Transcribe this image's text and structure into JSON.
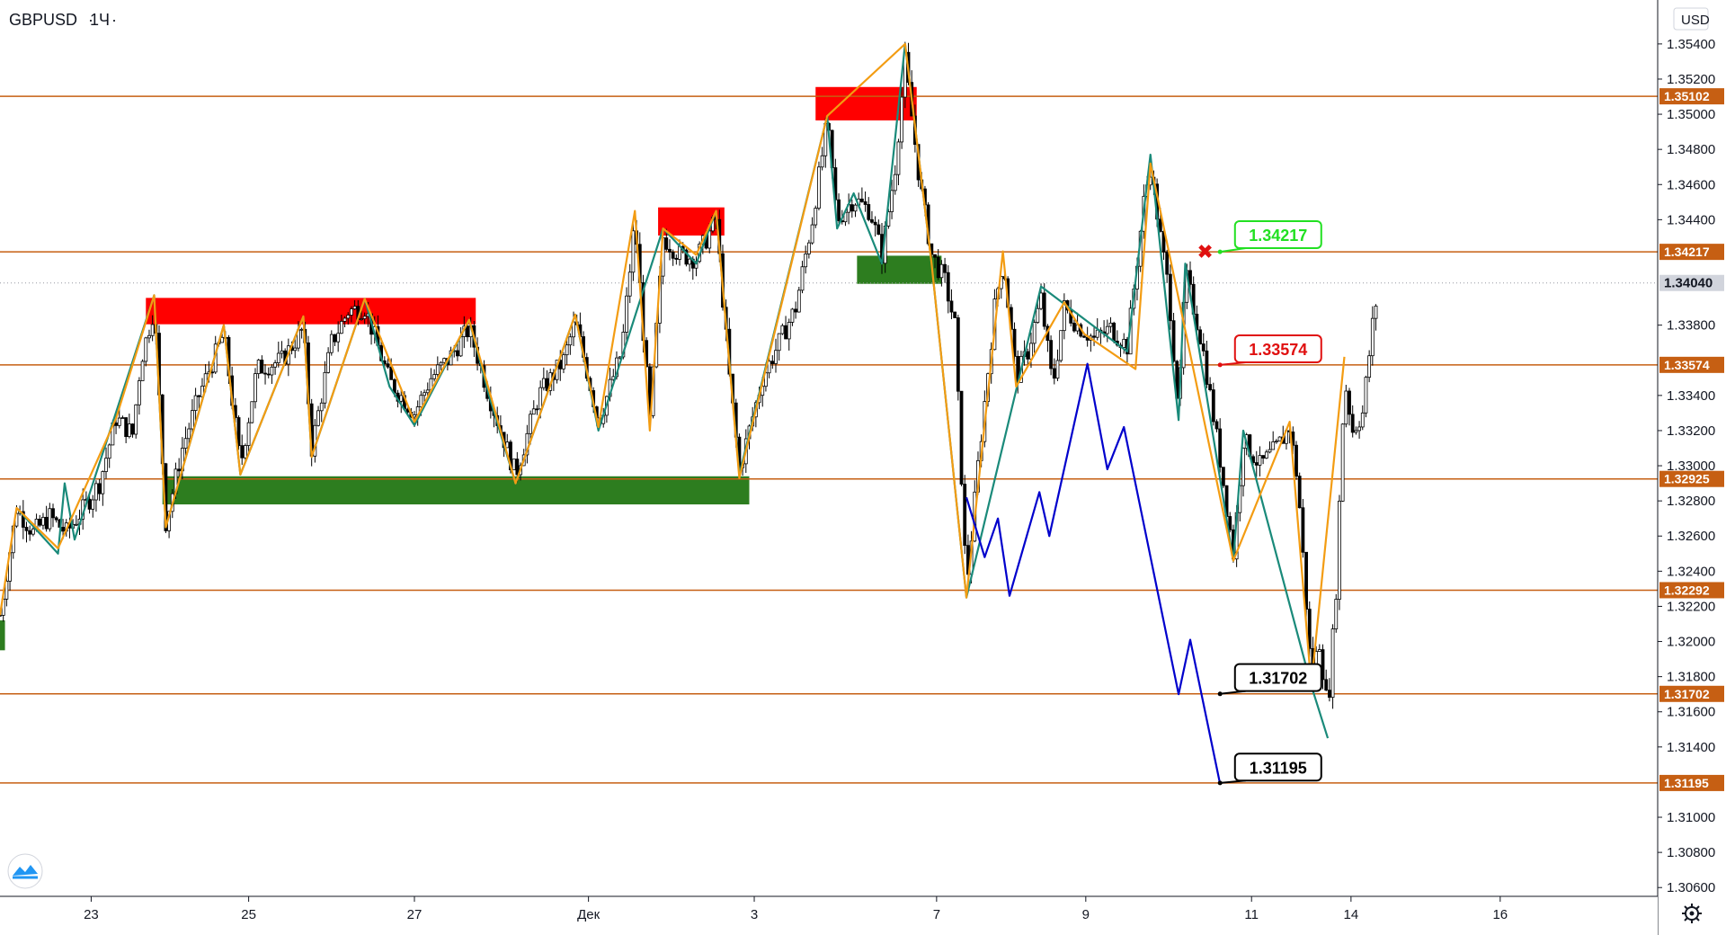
{
  "header": {
    "symbol": "GBPUSD",
    "interval": "1Ч",
    "currency": "USD"
  },
  "colors": {
    "level": "#c65f13",
    "up_wave": "#f39c12",
    "down_wave": "#1a8a7a",
    "projection": "#0000cc",
    "supply": "#ff0000",
    "demand": "#2d7d1f",
    "candle": "#000000",
    "callout_green": "#22e022",
    "callout_red": "#e01010",
    "callout_black": "#000000"
  },
  "chart_data": {
    "type": "candlestick",
    "symbol": "GBPUSD",
    "interval": "1Ч",
    "ylim": [
      1.3055,
      1.3565
    ],
    "xlim": [
      0,
      100
    ],
    "x_tick_labels": [
      {
        "label": "23",
        "x": 5.5
      },
      {
        "label": "25",
        "x": 15
      },
      {
        "label": "27",
        "x": 25
      },
      {
        "label": "Дек",
        "x": 35.5
      },
      {
        "label": "3",
        "x": 45.5
      },
      {
        "label": "7",
        "x": 56.5
      },
      {
        "label": "9",
        "x": 65.5
      },
      {
        "label": "11",
        "x": 75.5
      },
      {
        "label": "14",
        "x": 81.5
      },
      {
        "label": "16",
        "x": 90.5
      }
    ],
    "y_tick_labels": [
      "1.35400",
      "1.35200",
      "1.35000",
      "1.34800",
      "1.34600",
      "1.34400",
      "1.33800",
      "1.33400",
      "1.33200",
      "1.33000",
      "1.32800",
      "1.32600",
      "1.32400",
      "1.32200",
      "1.32000",
      "1.31800",
      "1.31600",
      "1.31400",
      "1.31000",
      "1.30800",
      "1.30600"
    ],
    "last_price": {
      "value": 1.3404,
      "label": "1.34040"
    },
    "levels": [
      {
        "value": 1.35102,
        "label": "1.35102"
      },
      {
        "value": 1.34217,
        "label": "1.34217"
      },
      {
        "value": 1.33574,
        "label": "1.33574"
      },
      {
        "value": 1.32925,
        "label": "1.32925"
      },
      {
        "value": 1.32292,
        "label": "1.32292"
      },
      {
        "value": 1.31702,
        "label": "1.31702"
      },
      {
        "value": 1.31195,
        "label": "1.31195"
      }
    ],
    "zones": [
      {
        "kind": "supply",
        "x0": 8.8,
        "x1": 28.7,
        "y0": 1.33805,
        "y1": 1.33955
      },
      {
        "kind": "supply",
        "x0": 39.7,
        "x1": 43.7,
        "y0": 1.3431,
        "y1": 1.3447
      },
      {
        "kind": "supply",
        "x0": 49.2,
        "x1": 55.3,
        "y0": 1.34965,
        "y1": 1.35155
      },
      {
        "kind": "demand",
        "x0": 9.8,
        "x1": 45.2,
        "y0": 1.3278,
        "y1": 1.3294
      },
      {
        "kind": "demand",
        "x0": 51.7,
        "x1": 56.8,
        "y0": 1.34035,
        "y1": 1.34195
      },
      {
        "kind": "demand",
        "x0": 0,
        "x1": 0.3,
        "y0": 1.3195,
        "y1": 1.3212
      }
    ],
    "up_wave": [
      [
        0,
        1.3215
      ],
      [
        1,
        1.3276
      ],
      [
        3.5,
        1.3253
      ],
      [
        7,
        1.3327
      ],
      [
        9.3,
        1.3397
      ],
      [
        10,
        1.3265
      ],
      [
        13.5,
        1.338
      ],
      [
        14.5,
        1.3295
      ],
      [
        18.3,
        1.3385
      ],
      [
        18.8,
        1.3305
      ],
      [
        22,
        1.3395
      ],
      [
        25,
        1.3325
      ],
      [
        28.3,
        1.3383
      ],
      [
        31.1,
        1.329
      ],
      [
        34.7,
        1.3386
      ],
      [
        36.1,
        1.3322
      ],
      [
        38.3,
        1.3445
      ],
      [
        39.2,
        1.332
      ],
      [
        40,
        1.3435
      ],
      [
        42,
        1.342
      ],
      [
        43.2,
        1.3445
      ],
      [
        44.6,
        1.3293
      ],
      [
        49.9,
        1.3499
      ],
      [
        54.6,
        1.354
      ],
      [
        56.2,
        1.3415
      ],
      [
        58.3,
        1.3225
      ],
      [
        60.5,
        1.3422
      ],
      [
        61.3,
        1.3345
      ],
      [
        64.2,
        1.3393
      ],
      [
        65.4,
        1.3375
      ],
      [
        68.5,
        1.3355
      ],
      [
        69.4,
        1.3472
      ],
      [
        74.4,
        1.3246
      ],
      [
        77.8,
        1.3325
      ],
      [
        79.1,
        1.3175
      ],
      [
        81.1,
        1.3362
      ]
    ],
    "down_wave": [
      [
        1,
        1.3276
      ],
      [
        3.5,
        1.325
      ],
      [
        3.9,
        1.329
      ],
      [
        4.5,
        1.3258
      ],
      [
        9.3,
        1.3397
      ],
      [
        10,
        1.3265
      ],
      [
        13.5,
        1.338
      ],
      [
        14.5,
        1.3295
      ],
      [
        18.3,
        1.3385
      ],
      [
        18.8,
        1.3305
      ],
      [
        22,
        1.3395
      ],
      [
        23.5,
        1.3345
      ],
      [
        25,
        1.3323
      ],
      [
        28.3,
        1.3383
      ],
      [
        29.5,
        1.334
      ],
      [
        31.1,
        1.329
      ],
      [
        34.7,
        1.3386
      ],
      [
        36.1,
        1.332
      ],
      [
        40,
        1.3435
      ],
      [
        42,
        1.3415
      ],
      [
        43.2,
        1.3445
      ],
      [
        44.6,
        1.3295
      ],
      [
        49.9,
        1.3499
      ],
      [
        50.5,
        1.3435
      ],
      [
        51.5,
        1.3455
      ],
      [
        53.2,
        1.3415
      ],
      [
        54.6,
        1.354
      ],
      [
        56.2,
        1.3415
      ],
      [
        58.3,
        1.3225
      ],
      [
        62.8,
        1.3402
      ],
      [
        68,
        1.3365
      ],
      [
        69.4,
        1.3477
      ],
      [
        71.1,
        1.3326
      ],
      [
        71.5,
        1.3415
      ],
      [
        74.4,
        1.3246
      ],
      [
        75,
        1.332
      ],
      [
        79.1,
        1.3175
      ],
      [
        80.1,
        1.3145
      ]
    ],
    "projection": [
      [
        58.3,
        1.3282
      ],
      [
        59.4,
        1.3248
      ],
      [
        60.2,
        1.327
      ],
      [
        60.9,
        1.3226
      ],
      [
        62.7,
        1.3285
      ],
      [
        63.3,
        1.326
      ],
      [
        65.6,
        1.3358
      ],
      [
        66.8,
        1.3298
      ],
      [
        67.8,
        1.3322
      ],
      [
        71.1,
        1.317
      ],
      [
        71.8,
        1.3201
      ],
      [
        73.6,
        1.3119
      ]
    ],
    "callouts": [
      {
        "label": "1.34217",
        "color": "green",
        "value": 1.34217,
        "anchor_x": 73.6,
        "box_x": 74.5,
        "box_value": 1.3431
      },
      {
        "label": "1.33574",
        "color": "red",
        "value": 1.33574,
        "anchor_x": 73.6,
        "box_x": 74.5,
        "box_value": 1.3366
      },
      {
        "label": "1.31702",
        "color": "black",
        "value": 1.31702,
        "anchor_x": 73.6,
        "box_x": 74.5,
        "box_value": 1.3179
      },
      {
        "label": "1.31195",
        "color": "black",
        "value": 1.31195,
        "anchor_x": 73.6,
        "box_x": 74.5,
        "box_value": 1.3128
      }
    ],
    "cancel_mark": {
      "x": 72.7,
      "value": 1.3422,
      "glyph": "✖"
    },
    "candle_anchors": [
      [
        0,
        1.3215
      ],
      [
        1,
        1.3276
      ],
      [
        2,
        1.3262
      ],
      [
        3,
        1.3271
      ],
      [
        4,
        1.3262
      ],
      [
        5,
        1.3275
      ],
      [
        6,
        1.329
      ],
      [
        7,
        1.3327
      ],
      [
        8,
        1.3318
      ],
      [
        8.5,
        1.336
      ],
      [
        9.3,
        1.339
      ],
      [
        10,
        1.3268
      ],
      [
        11,
        1.331
      ],
      [
        12,
        1.334
      ],
      [
        13.5,
        1.3375
      ],
      [
        14.5,
        1.33
      ],
      [
        15.5,
        1.3355
      ],
      [
        17,
        1.336
      ],
      [
        18.3,
        1.3378
      ],
      [
        18.8,
        1.331
      ],
      [
        20,
        1.337
      ],
      [
        21,
        1.3388
      ],
      [
        22,
        1.339
      ],
      [
        23.5,
        1.3348
      ],
      [
        25,
        1.333
      ],
      [
        26,
        1.335
      ],
      [
        27,
        1.336
      ],
      [
        28.3,
        1.3378
      ],
      [
        29.5,
        1.334
      ],
      [
        31.1,
        1.3295
      ],
      [
        32.5,
        1.334
      ],
      [
        34,
        1.336
      ],
      [
        34.7,
        1.3382
      ],
      [
        35.5,
        1.335
      ],
      [
        36.1,
        1.3325
      ],
      [
        37.5,
        1.3365
      ],
      [
        38.3,
        1.344
      ],
      [
        39.2,
        1.3325
      ],
      [
        40,
        1.343
      ],
      [
        41,
        1.342
      ],
      [
        42,
        1.3418
      ],
      [
        43.2,
        1.344
      ],
      [
        44,
        1.335
      ],
      [
        44.6,
        1.3298
      ],
      [
        46,
        1.335
      ],
      [
        47,
        1.337
      ],
      [
        48,
        1.339
      ],
      [
        49,
        1.344
      ],
      [
        49.9,
        1.3495
      ],
      [
        50.5,
        1.344
      ],
      [
        51.5,
        1.3452
      ],
      [
        52.5,
        1.3445
      ],
      [
        53.2,
        1.342
      ],
      [
        54,
        1.347
      ],
      [
        54.6,
        1.353
      ],
      [
        55.5,
        1.346
      ],
      [
        56.2,
        1.342
      ],
      [
        57,
        1.3405
      ],
      [
        57.6,
        1.338
      ],
      [
        58.3,
        1.323
      ],
      [
        59,
        1.33
      ],
      [
        60,
        1.339
      ],
      [
        60.5,
        1.3418
      ],
      [
        61.3,
        1.335
      ],
      [
        62,
        1.3365
      ],
      [
        62.8,
        1.3395
      ],
      [
        63.5,
        1.3345
      ],
      [
        64.2,
        1.339
      ],
      [
        65,
        1.338
      ],
      [
        66,
        1.3372
      ],
      [
        67,
        1.3378
      ],
      [
        68,
        1.3368
      ],
      [
        69,
        1.345
      ],
      [
        69.4,
        1.347
      ],
      [
        70,
        1.343
      ],
      [
        70.5,
        1.34
      ],
      [
        71.1,
        1.333
      ],
      [
        71.5,
        1.341
      ],
      [
        72.5,
        1.337
      ],
      [
        73.5,
        1.331
      ],
      [
        74.4,
        1.325
      ],
      [
        75,
        1.3315
      ],
      [
        76,
        1.33
      ],
      [
        77,
        1.331
      ],
      [
        77.8,
        1.3322
      ],
      [
        78.3,
        1.329
      ],
      [
        79.1,
        1.318
      ],
      [
        79.6,
        1.32
      ],
      [
        80.1,
        1.316
      ],
      [
        80.6,
        1.323
      ],
      [
        81.1,
        1.335
      ],
      [
        81.6,
        1.332
      ],
      [
        82.2,
        1.333
      ],
      [
        82.8,
        1.338
      ],
      [
        83.2,
        1.3405
      ]
    ]
  }
}
